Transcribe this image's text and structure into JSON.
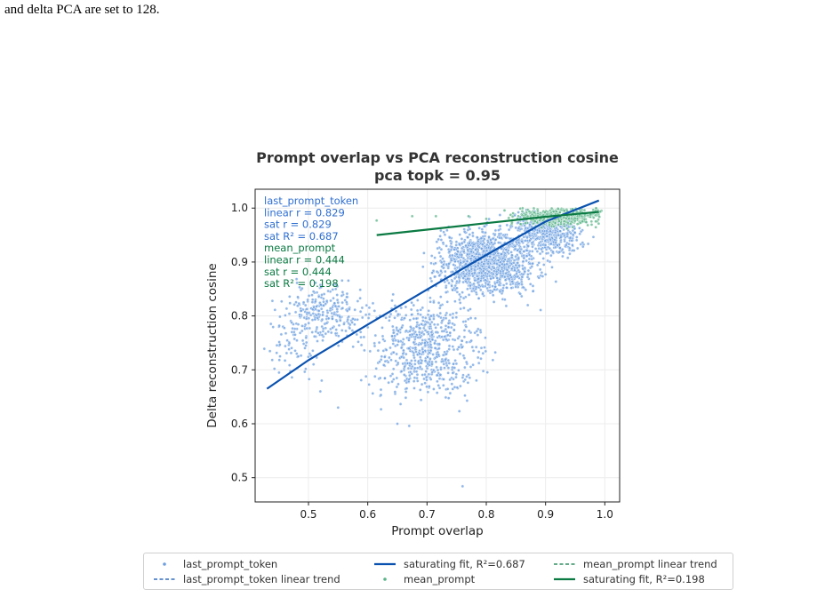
{
  "caption": "and delta PCA are set to 128.",
  "colors": {
    "last_prompt_token": "#2f6fd0",
    "last_prompt_token_point": "#6ea0e0",
    "mean_prompt": "#0b7a43",
    "mean_prompt_point": "#5cb58a"
  },
  "chart_data": {
    "type": "scatter",
    "title": "Prompt overlap vs PCA reconstruction cosine",
    "subtitle": "pca topk = 0.95",
    "xlabel": "Prompt overlap",
    "ylabel": "Delta reconstruction cosine",
    "xlim": [
      0.41,
      1.025
    ],
    "ylim": [
      0.455,
      1.035
    ],
    "xticks": [
      0.5,
      0.6,
      0.7,
      0.8,
      0.9,
      1.0
    ],
    "xtick_labels": [
      "0.5",
      "0.6",
      "0.7",
      "0.8",
      "0.9",
      "1.0"
    ],
    "yticks": [
      0.5,
      0.6,
      0.7,
      0.8,
      0.9,
      1.0
    ],
    "ytick_labels": [
      "0.5",
      "0.6",
      "0.7",
      "0.8",
      "0.9",
      "1.0"
    ],
    "grid": true,
    "legend_position": "bottom-center",
    "annotations": [
      {
        "series": "last_prompt_token",
        "lines": [
          "last_prompt_token",
          "linear r = 0.829",
          "sat r = 0.829",
          "sat R² = 0.687"
        ]
      },
      {
        "series": "mean_prompt",
        "lines": [
          "mean_prompt",
          "linear r = 0.444",
          "sat r = 0.444",
          "sat R² = 0.198"
        ]
      }
    ],
    "series": [
      {
        "name": "last_prompt_token",
        "kind": "scatter",
        "clusters": [
          {
            "x_mean": 0.53,
            "x_sd": 0.035,
            "y_mean": 0.805,
            "y_sd": 0.025,
            "n": 260
          },
          {
            "x_mean": 0.47,
            "x_sd": 0.025,
            "y_mean": 0.74,
            "y_sd": 0.03,
            "n": 70
          },
          {
            "x_mean": 0.7,
            "x_sd": 0.045,
            "y_mean": 0.74,
            "y_sd": 0.045,
            "n": 650
          },
          {
            "x_mean": 0.8,
            "x_sd": 0.04,
            "y_mean": 0.9,
            "y_sd": 0.03,
            "n": 1250
          },
          {
            "x_mean": 0.9,
            "x_sd": 0.03,
            "y_mean": 0.955,
            "y_sd": 0.02,
            "n": 550
          }
        ],
        "outliers": [
          [
            0.76,
            0.484
          ],
          [
            0.67,
            0.596
          ],
          [
            0.65,
            0.6
          ],
          [
            0.55,
            0.63
          ],
          [
            0.52,
            0.66
          ],
          [
            0.9,
            0.877
          ],
          [
            0.87,
            0.82
          ]
        ]
      },
      {
        "name": "saturating fit, R²=0.687",
        "kind": "fit",
        "x": [
          0.43,
          0.5,
          0.6,
          0.7,
          0.8,
          0.9,
          0.99
        ],
        "y": [
          0.665,
          0.718,
          0.784,
          0.849,
          0.913,
          0.975,
          1.014
        ]
      },
      {
        "name": "mean_prompt",
        "kind": "scatter",
        "clusters": [
          {
            "x_mean": 0.93,
            "x_sd": 0.04,
            "y_mean": 0.985,
            "y_sd": 0.009,
            "n": 450
          }
        ],
        "outliers": [
          [
            0.615,
            0.977
          ],
          [
            0.675,
            0.985
          ],
          [
            0.715,
            0.985
          ],
          [
            0.77,
            0.985
          ],
          [
            0.8,
            0.98
          ]
        ]
      },
      {
        "name": "saturating fit, R²=0.198",
        "kind": "fit",
        "x": [
          0.615,
          0.7,
          0.8,
          0.9,
          0.99
        ],
        "y": [
          0.95,
          0.96,
          0.972,
          0.984,
          0.993
        ]
      }
    ],
    "legend": [
      {
        "label": "last_prompt_token",
        "symbol": "dot",
        "series": "last_prompt_token"
      },
      {
        "label": "saturating fit, R²=0.687",
        "symbol": "solid",
        "series": "last_prompt_token"
      },
      {
        "label": "mean_prompt linear trend",
        "symbol": "dashed",
        "series": "mean_prompt"
      },
      {
        "label": "last_prompt_token linear trend",
        "symbol": "dashed",
        "series": "last_prompt_token"
      },
      {
        "label": "mean_prompt",
        "symbol": "dot",
        "series": "mean_prompt"
      },
      {
        "label": "saturating fit, R²=0.198",
        "symbol": "solid",
        "series": "mean_prompt"
      }
    ]
  }
}
